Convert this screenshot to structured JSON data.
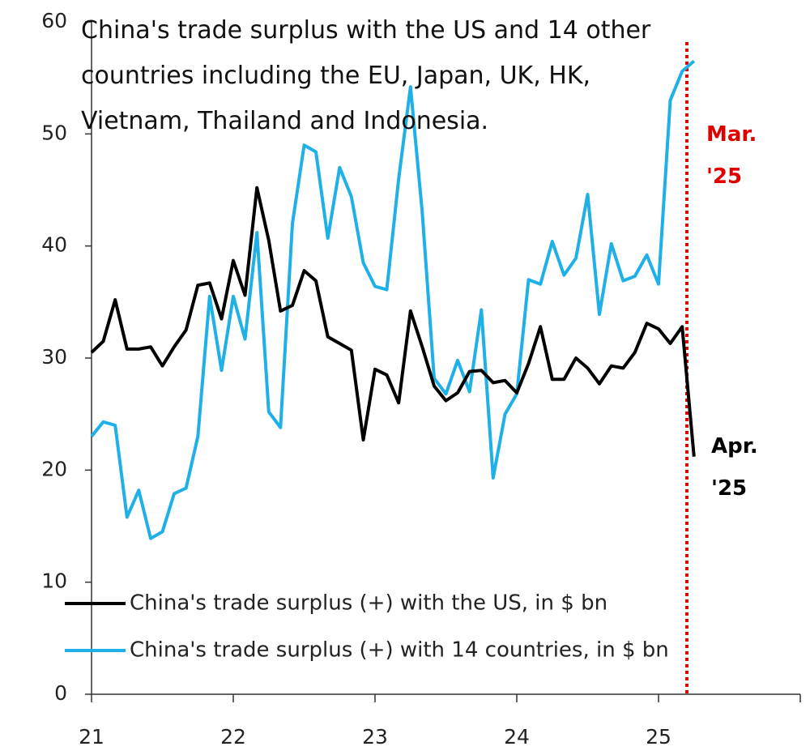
{
  "chart_data": {
    "type": "line",
    "title": "China's trade surplus with the US and 14 other countries including the EU, Japan, UK, HK, Vietnam, Thailand and Indonesia.",
    "x": [
      2021,
      2021.083,
      2021.167,
      2021.25,
      2021.333,
      2021.417,
      2021.5,
      2021.583,
      2021.667,
      2021.75,
      2021.833,
      2021.917,
      2022,
      2022.083,
      2022.167,
      2022.25,
      2022.333,
      2022.417,
      2022.5,
      2022.583,
      2022.667,
      2022.75,
      2022.833,
      2022.917,
      2023,
      2023.083,
      2023.167,
      2023.25,
      2023.333,
      2023.417,
      2023.5,
      2023.583,
      2023.667,
      2023.75,
      2023.833,
      2023.917,
      2024,
      2024.083,
      2024.167,
      2024.25,
      2024.333,
      2024.417,
      2024.5,
      2024.583,
      2024.667,
      2024.75,
      2024.833,
      2024.917,
      2025,
      2025.083,
      2025.167,
      2025.25
    ],
    "series": [
      {
        "name": "China's trade surplus (+) with the US, in $ bn",
        "color": "#000000",
        "values": [
          30.5,
          31.5,
          35.2,
          30.8,
          30.8,
          31.0,
          29.3,
          31.0,
          32.5,
          36.5,
          36.7,
          33.5,
          38.7,
          35.6,
          45.2,
          40.5,
          34.2,
          34.7,
          37.8,
          36.9,
          31.9,
          31.3,
          30.7,
          22.7,
          29.0,
          28.5,
          26.0,
          34.2,
          31.0,
          27.5,
          26.2,
          26.9,
          28.8,
          28.9,
          27.8,
          28.0,
          26.9,
          29.5,
          32.8,
          28.1,
          28.1,
          30.0,
          29.1,
          27.7,
          29.3,
          29.1,
          30.5,
          33.1,
          32.6,
          31.3,
          32.8,
          21.2
        ]
      },
      {
        "name": "China's trade surplus (+) with 14 countries, in $ bn",
        "color": "#1fb0e8",
        "values": [
          23.0,
          24.3,
          24.0,
          15.8,
          18.2,
          13.9,
          14.5,
          17.9,
          18.4,
          23.0,
          35.5,
          28.9,
          35.5,
          31.7,
          41.2,
          25.2,
          23.8,
          42.0,
          49.0,
          48.4,
          40.7,
          47.0,
          44.4,
          38.5,
          36.4,
          36.1,
          46.0,
          54.2,
          43.0,
          28.2,
          26.8,
          29.8,
          27.0,
          34.3,
          19.3,
          25.0,
          26.8,
          37.0,
          36.6,
          40.4,
          37.4,
          38.9,
          44.6,
          33.9,
          40.2,
          36.9,
          37.3,
          39.2,
          36.6,
          53.0,
          55.6,
          56.5
        ]
      }
    ],
    "xlim": [
      2021,
      2026
    ],
    "xticks": [
      {
        "value": 2021,
        "label": "21"
      },
      {
        "value": 2022,
        "label": "22"
      },
      {
        "value": 2023,
        "label": "23"
      },
      {
        "value": 2024,
        "label": "24"
      },
      {
        "value": 2025,
        "label": "25"
      },
      {
        "value": 2026,
        "label": ""
      }
    ],
    "ylim": [
      0,
      60
    ],
    "yticks": [
      0,
      10,
      20,
      30,
      40,
      50,
      60
    ],
    "vline": {
      "x": 2025.2,
      "color": "#e00000"
    },
    "annotations": [
      {
        "text": "Mar. '25",
        "color": "#e00000"
      },
      {
        "text": "Apr. '25",
        "color": "#000000"
      }
    ]
  }
}
